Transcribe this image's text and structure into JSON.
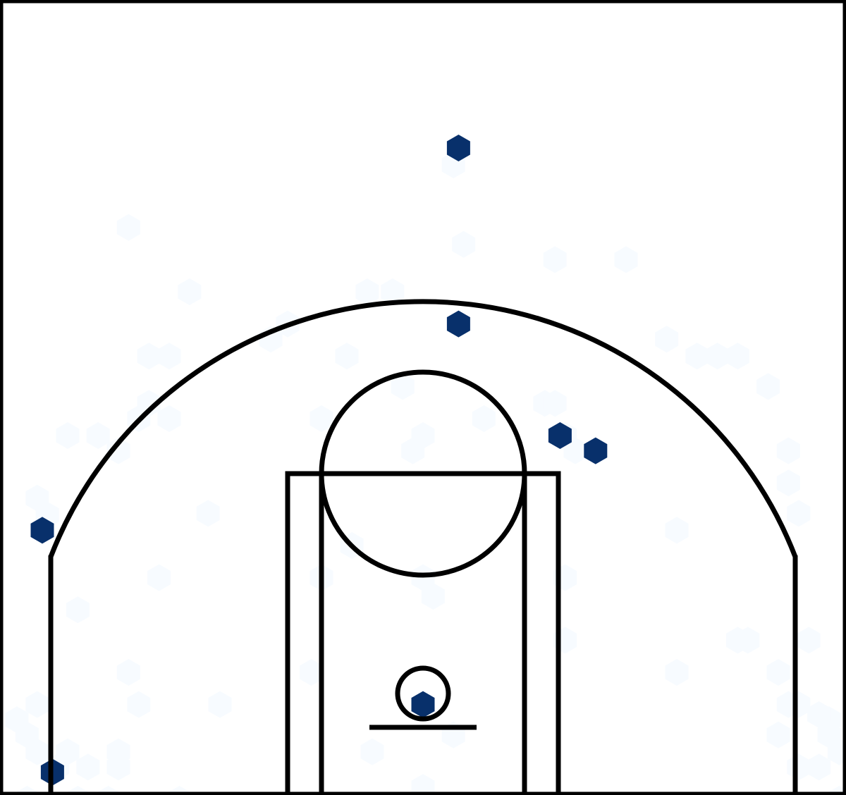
{
  "chart_data": {
    "type": "scatter",
    "subtype": "hexbin-shot-chart",
    "title": "",
    "xlabel": "",
    "ylabel": "",
    "xlim": [
      -250,
      250
    ],
    "ylim": [
      -47.5,
      422.5
    ],
    "grid": false,
    "legend": "none",
    "colors": {
      "background": "#ffffff",
      "court_lines": "#000000",
      "low": "#f7fbff",
      "high": "#08306b"
    },
    "intensity_levels": [
      "low",
      "high"
    ],
    "points": [
      {
        "x": -174,
        "y": 288,
        "level": "low"
      },
      {
        "x": -138,
        "y": 250,
        "level": "low"
      },
      {
        "x": -90,
        "y": 222,
        "level": "low"
      },
      {
        "x": -80,
        "y": 231,
        "level": "low"
      },
      {
        "x": -33,
        "y": 250,
        "level": "low"
      },
      {
        "x": -45,
        "y": 212,
        "level": "low"
      },
      {
        "x": -162,
        "y": 212,
        "level": "low"
      },
      {
        "x": -150,
        "y": 212,
        "level": "low"
      },
      {
        "x": -162,
        "y": 184,
        "level": "low"
      },
      {
        "x": -150,
        "y": 175,
        "level": "low"
      },
      {
        "x": -168,
        "y": 175,
        "level": "low"
      },
      {
        "x": -180,
        "y": 156,
        "level": "low"
      },
      {
        "x": -192,
        "y": 165,
        "level": "low"
      },
      {
        "x": -210,
        "y": 165,
        "level": "low"
      },
      {
        "x": -228,
        "y": 128,
        "level": "low"
      },
      {
        "x": -222,
        "y": 118,
        "level": "low"
      },
      {
        "x": -127,
        "y": 119,
        "level": "low"
      },
      {
        "x": -156,
        "y": 81,
        "level": "low"
      },
      {
        "x": -204,
        "y": 62,
        "level": "low"
      },
      {
        "x": -174,
        "y": 25,
        "level": "low"
      },
      {
        "x": -168,
        "y": 6,
        "level": "low"
      },
      {
        "x": -120,
        "y": 6,
        "level": "low"
      },
      {
        "x": -228,
        "y": -22,
        "level": "low"
      },
      {
        "x": -210,
        "y": -22,
        "level": "low"
      },
      {
        "x": -180,
        "y": -22,
        "level": "low"
      },
      {
        "x": -240,
        "y": -3,
        "level": "low"
      },
      {
        "x": -234,
        "y": -12,
        "level": "low"
      },
      {
        "x": -216,
        "y": -31,
        "level": "low"
      },
      {
        "x": -198,
        "y": -31,
        "level": "low"
      },
      {
        "x": -204,
        "y": -50,
        "level": "low"
      },
      {
        "x": -234,
        "y": -50,
        "level": "low"
      },
      {
        "x": -186,
        "y": -50,
        "level": "low"
      },
      {
        "x": -228,
        "y": 6,
        "level": "low"
      },
      {
        "x": -144,
        "y": -50,
        "level": "low"
      },
      {
        "x": -180,
        "y": -31,
        "level": "low"
      },
      {
        "x": -60,
        "y": 175,
        "level": "low"
      },
      {
        "x": -60,
        "y": 81,
        "level": "low"
      },
      {
        "x": -42,
        "y": 100,
        "level": "low"
      },
      {
        "x": -66,
        "y": 25,
        "level": "low"
      },
      {
        "x": -30,
        "y": -22,
        "level": "low"
      },
      {
        "x": -18,
        "y": 250,
        "level": "low"
      },
      {
        "x": -12,
        "y": 194,
        "level": "low"
      },
      {
        "x": -6,
        "y": 156,
        "level": "low"
      },
      {
        "x": 0,
        "y": 165,
        "level": "low"
      },
      {
        "x": 0,
        "y": 81,
        "level": "low"
      },
      {
        "x": 6,
        "y": 70,
        "level": "low"
      },
      {
        "x": 0,
        "y": -43,
        "level": "low"
      },
      {
        "x": 18,
        "y": -12,
        "level": "low"
      },
      {
        "x": 24,
        "y": 278,
        "level": "low"
      },
      {
        "x": 36,
        "y": 175,
        "level": "low"
      },
      {
        "x": 72,
        "y": 184,
        "level": "low"
      },
      {
        "x": 78,
        "y": 184,
        "level": "low"
      },
      {
        "x": 84,
        "y": 165,
        "level": "low"
      },
      {
        "x": 90,
        "y": 156,
        "level": "low"
      },
      {
        "x": 102,
        "y": 156,
        "level": "low"
      },
      {
        "x": 78,
        "y": 269,
        "level": "low"
      },
      {
        "x": 120,
        "y": 269,
        "level": "low"
      },
      {
        "x": 144,
        "y": 222,
        "level": "low"
      },
      {
        "x": 162,
        "y": 212,
        "level": "low"
      },
      {
        "x": 174,
        "y": 212,
        "level": "low"
      },
      {
        "x": 186,
        "y": 212,
        "level": "low"
      },
      {
        "x": 204,
        "y": 194,
        "level": "low"
      },
      {
        "x": 216,
        "y": 156,
        "level": "low"
      },
      {
        "x": 216,
        "y": 137,
        "level": "low"
      },
      {
        "x": 222,
        "y": 119,
        "level": "low"
      },
      {
        "x": 150,
        "y": 109,
        "level": "low"
      },
      {
        "x": 84,
        "y": 81,
        "level": "low"
      },
      {
        "x": 192,
        "y": 44,
        "level": "low"
      },
      {
        "x": 228,
        "y": 44,
        "level": "low"
      },
      {
        "x": 150,
        "y": 25,
        "level": "low"
      },
      {
        "x": 210,
        "y": 25,
        "level": "low"
      },
      {
        "x": 216,
        "y": 6,
        "level": "low"
      },
      {
        "x": 234,
        "y": -31,
        "level": "low"
      },
      {
        "x": 240,
        "y": -3,
        "level": "low"
      },
      {
        "x": 240,
        "y": -12,
        "level": "low"
      },
      {
        "x": 246,
        "y": -22,
        "level": "low"
      },
      {
        "x": 234,
        "y": 0,
        "level": "low"
      },
      {
        "x": 222,
        "y": 6,
        "level": "low"
      },
      {
        "x": 210,
        "y": -12,
        "level": "low"
      },
      {
        "x": 18,
        "y": 325,
        "level": "low"
      },
      {
        "x": 84,
        "y": 44,
        "level": "low"
      },
      {
        "x": 186,
        "y": 44,
        "level": "low"
      },
      {
        "x": 246,
        "y": -50,
        "level": "low"
      },
      {
        "x": 222,
        "y": -31,
        "level": "low"
      },
      {
        "x": 21,
        "y": 335,
        "level": "high"
      },
      {
        "x": 21,
        "y": 231,
        "level": "high"
      },
      {
        "x": 81,
        "y": 165,
        "level": "high"
      },
      {
        "x": 102,
        "y": 156,
        "level": "high"
      },
      {
        "x": -225,
        "y": 109,
        "level": "high"
      },
      {
        "x": -219,
        "y": -34,
        "level": "high"
      },
      {
        "x": 0,
        "y": 6,
        "level": "high"
      }
    ]
  }
}
